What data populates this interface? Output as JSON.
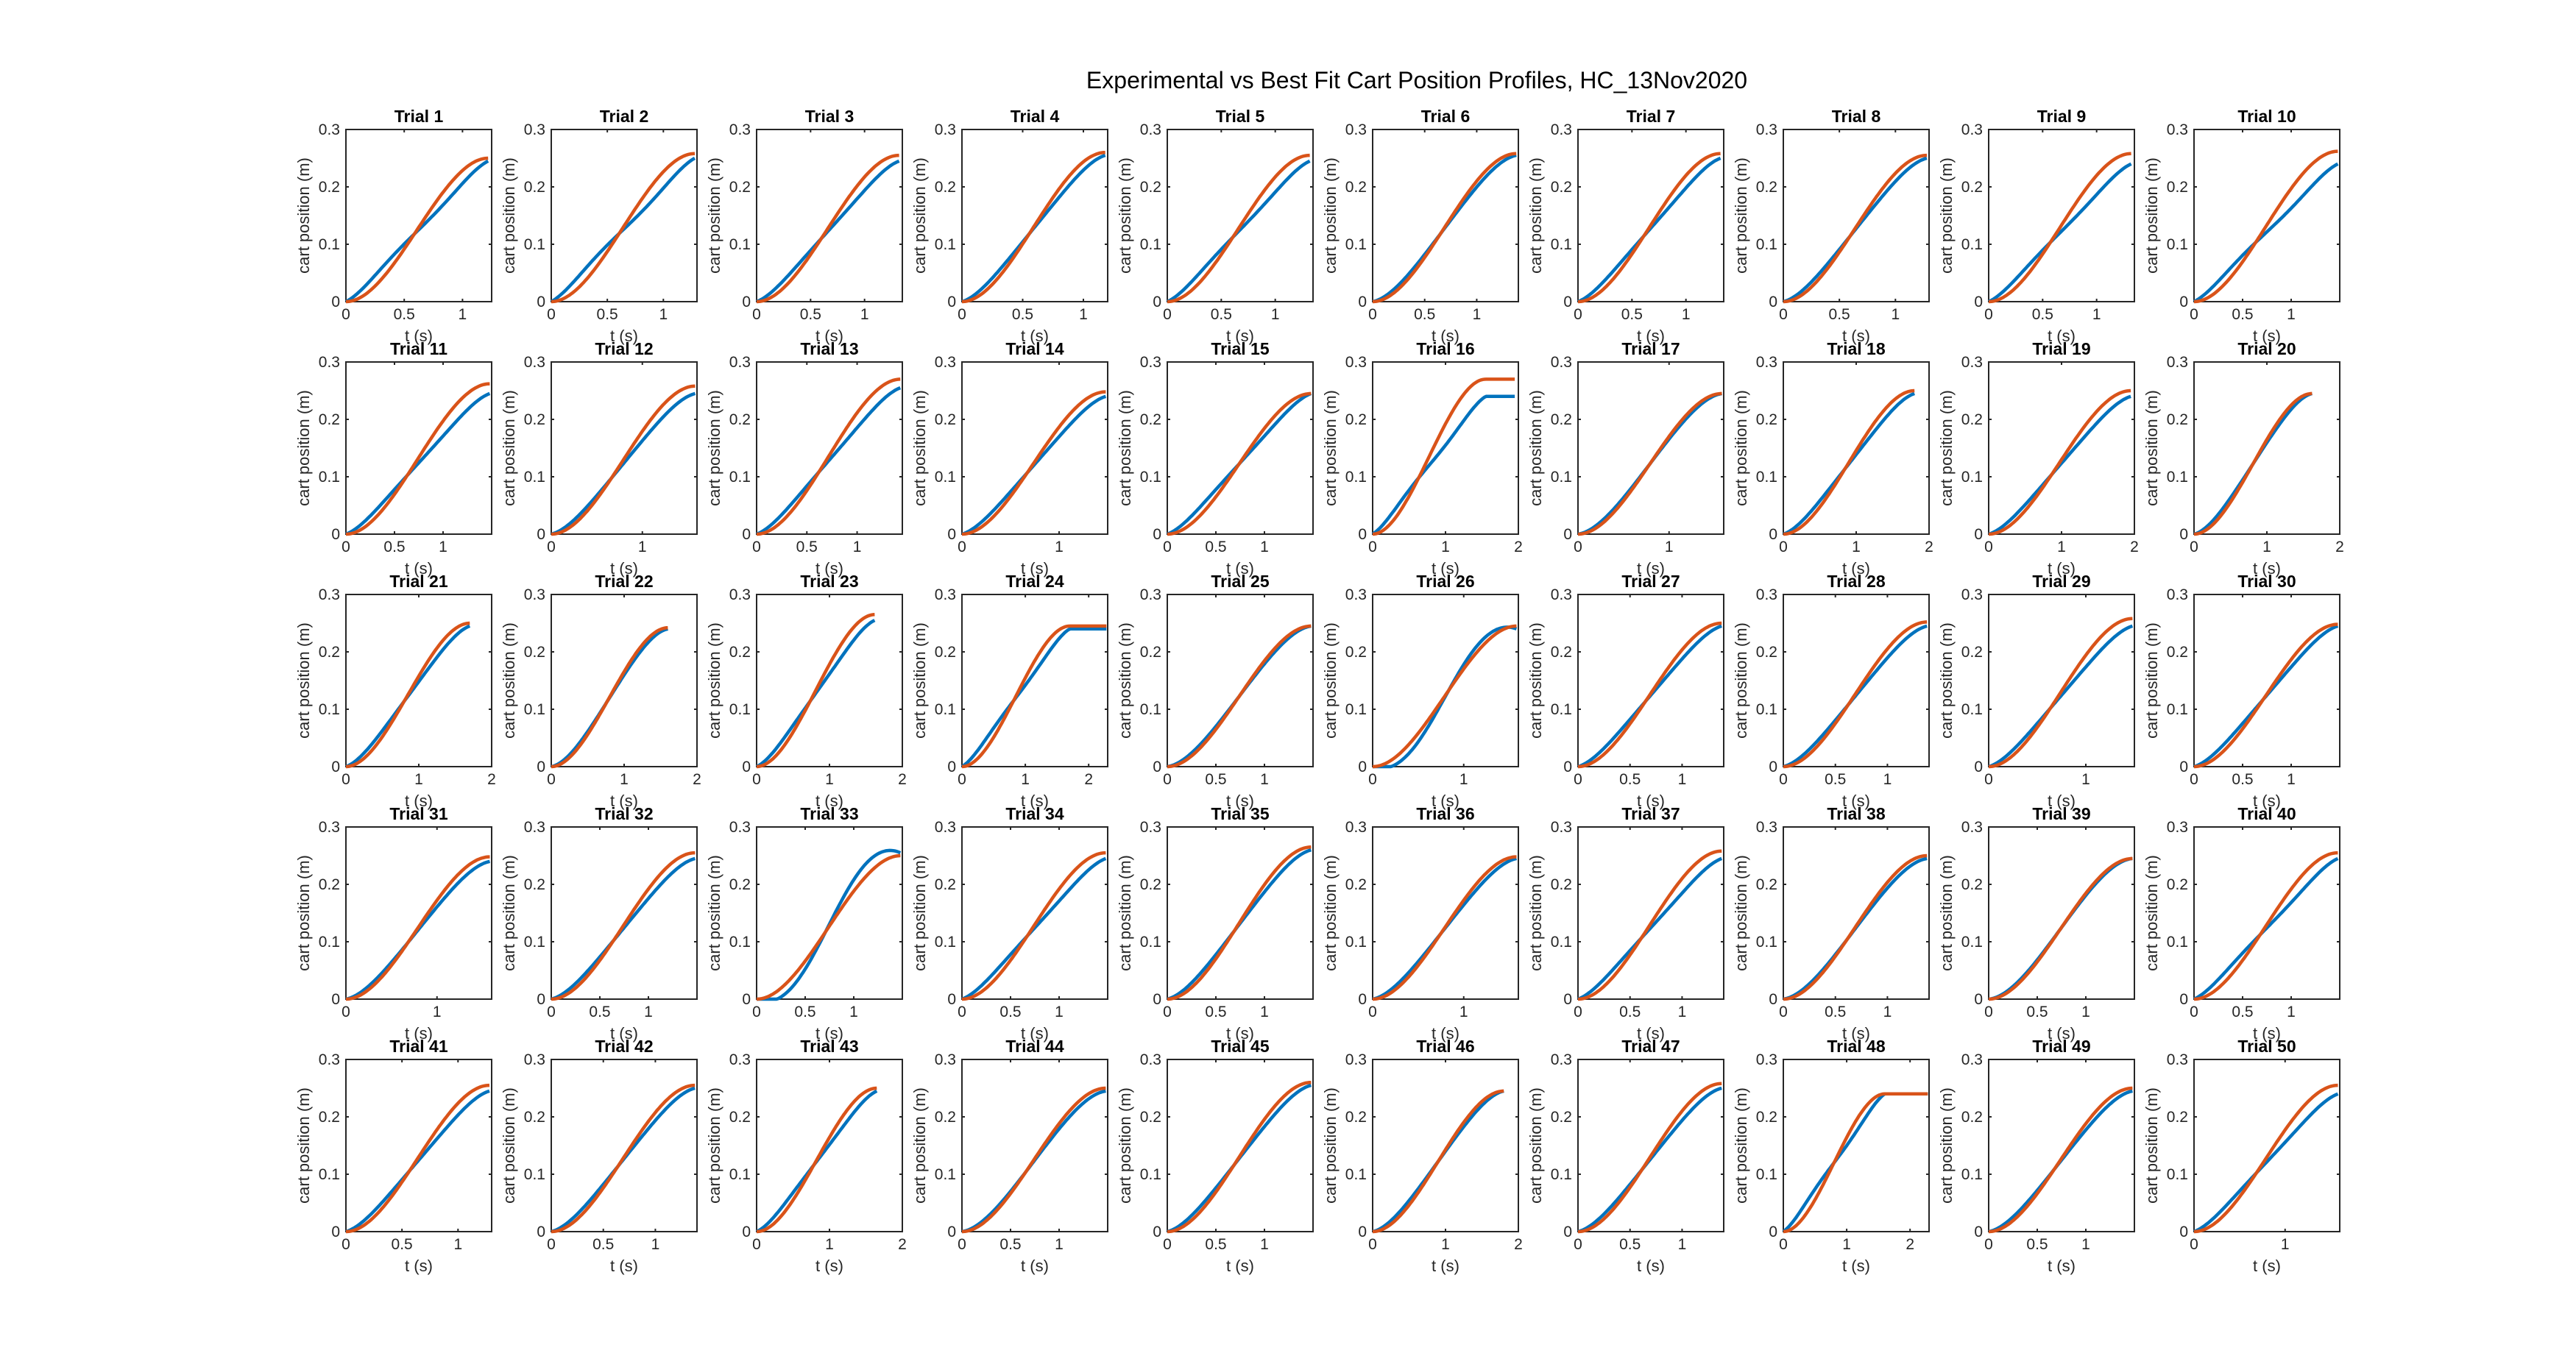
{
  "figure_title": "Experimental vs Best Fit Cart Position Profiles, HC_13Nov2020",
  "chart_data": {
    "type": "line",
    "grid": false,
    "colors": {
      "experimental": "#0072BD",
      "best_fit": "#D95319"
    },
    "xlabel": "t (s)",
    "ylabel": "cart position (m)",
    "ylim": [
      0,
      0.3
    ],
    "yticks": [
      "0",
      "0.1",
      "0.2",
      "0.3"
    ],
    "panels": [
      {
        "title": "Trial 1",
        "xmax": 1.25,
        "tend": 1.22,
        "xticks": [
          {
            "v": 0,
            "l": "0"
          },
          {
            "v": 0.5,
            "l": "0.5"
          },
          {
            "v": 1,
            "l": "1"
          }
        ],
        "yend": 0.245,
        "fend": 0.25,
        "dev": 0.02
      },
      {
        "title": "Trial 2",
        "xmax": 1.3,
        "tend": 1.28,
        "xticks": [
          {
            "v": 0,
            "l": "0"
          },
          {
            "v": 0.5,
            "l": "0.5"
          },
          {
            "v": 1,
            "l": "1"
          }
        ],
        "yend": 0.25,
        "fend": 0.258,
        "dev": 0.022
      },
      {
        "title": "Trial 3",
        "xmax": 1.35,
        "tend": 1.32,
        "xticks": [
          {
            "v": 0,
            "l": "0"
          },
          {
            "v": 0.5,
            "l": "0.5"
          },
          {
            "v": 1,
            "l": "1"
          }
        ],
        "yend": 0.245,
        "fend": 0.255,
        "dev": 0.015
      },
      {
        "title": "Trial 4",
        "xmax": 1.2,
        "tend": 1.18,
        "xticks": [
          {
            "v": 0,
            "l": "0"
          },
          {
            "v": 0.5,
            "l": "0.5"
          },
          {
            "v": 1,
            "l": "1"
          }
        ],
        "yend": 0.255,
        "fend": 0.26,
        "dev": 0.012
      },
      {
        "title": "Trial 5",
        "xmax": 1.35,
        "tend": 1.32,
        "xticks": [
          {
            "v": 0,
            "l": "0"
          },
          {
            "v": 0.5,
            "l": "0.5"
          },
          {
            "v": 1,
            "l": "1"
          }
        ],
        "yend": 0.245,
        "fend": 0.255,
        "dev": 0.018
      },
      {
        "title": "Trial 6",
        "xmax": 1.4,
        "tend": 1.38,
        "xticks": [
          {
            "v": 0,
            "l": "0"
          },
          {
            "v": 0.5,
            "l": "0.5"
          },
          {
            "v": 1,
            "l": "1"
          }
        ],
        "yend": 0.255,
        "fend": 0.258,
        "dev": 0.008
      },
      {
        "title": "Trial 7",
        "xmax": 1.35,
        "tend": 1.32,
        "xticks": [
          {
            "v": 0,
            "l": "0"
          },
          {
            "v": 0.5,
            "l": "0.5"
          },
          {
            "v": 1,
            "l": "1"
          }
        ],
        "yend": 0.25,
        "fend": 0.258,
        "dev": 0.015
      },
      {
        "title": "Trial 8",
        "xmax": 1.3,
        "tend": 1.28,
        "xticks": [
          {
            "v": 0,
            "l": "0"
          },
          {
            "v": 0.5,
            "l": "0.5"
          },
          {
            "v": 1,
            "l": "1"
          }
        ],
        "yend": 0.25,
        "fend": 0.255,
        "dev": 0.01
      },
      {
        "title": "Trial 9",
        "xmax": 1.35,
        "tend": 1.32,
        "xticks": [
          {
            "v": 0,
            "l": "0"
          },
          {
            "v": 0.5,
            "l": "0.5"
          },
          {
            "v": 1,
            "l": "1"
          }
        ],
        "yend": 0.24,
        "fend": 0.258,
        "dev": 0.018
      },
      {
        "title": "Trial 10",
        "xmax": 1.5,
        "tend": 1.48,
        "xticks": [
          {
            "v": 0,
            "l": "0"
          },
          {
            "v": 0.5,
            "l": "0.5"
          },
          {
            "v": 1,
            "l": "1"
          }
        ],
        "yend": 0.24,
        "fend": 0.262,
        "dev": 0.02
      },
      {
        "title": "Trial 11",
        "xmax": 1.5,
        "tend": 1.48,
        "xticks": [
          {
            "v": 0,
            "l": "0"
          },
          {
            "v": 0.5,
            "l": "0.5"
          },
          {
            "v": 1,
            "l": "1"
          }
        ],
        "yend": 0.245,
        "fend": 0.262,
        "dev": 0.015
      },
      {
        "title": "Trial 12",
        "xmax": 1.6,
        "tend": 1.58,
        "xticks": [
          {
            "v": 0,
            "l": "0"
          },
          {
            "v": 1,
            "l": "1"
          }
        ],
        "yend": 0.245,
        "fend": 0.258,
        "dev": 0.01
      },
      {
        "title": "Trial 13",
        "xmax": 1.45,
        "tend": 1.43,
        "xticks": [
          {
            "v": 0,
            "l": "0"
          },
          {
            "v": 0.5,
            "l": "0.5"
          },
          {
            "v": 1,
            "l": "1"
          }
        ],
        "yend": 0.255,
        "fend": 0.27,
        "dev": 0.015
      },
      {
        "title": "Trial 14",
        "xmax": 1.5,
        "tend": 1.48,
        "xticks": [
          {
            "v": 0,
            "l": "0"
          },
          {
            "v": 1,
            "l": "1"
          }
        ],
        "yend": 0.24,
        "fend": 0.248,
        "dev": 0.012
      },
      {
        "title": "Trial 15",
        "xmax": 1.5,
        "tend": 1.48,
        "xticks": [
          {
            "v": 0,
            "l": "0"
          },
          {
            "v": 0.5,
            "l": "0.5"
          },
          {
            "v": 1,
            "l": "1"
          }
        ],
        "yend": 0.245,
        "fend": 0.245,
        "dev": 0.015
      },
      {
        "title": "Trial 16",
        "xmax": 2.0,
        "tend": 1.95,
        "xticks": [
          {
            "v": 0,
            "l": "0"
          },
          {
            "v": 1,
            "l": "1"
          },
          {
            "v": 2,
            "l": "2"
          }
        ],
        "yend": 0.24,
        "fend": 0.27,
        "dev": 0.02,
        "plateau": 1.55
      },
      {
        "title": "Trial 17",
        "xmax": 1.6,
        "tend": 1.58,
        "xticks": [
          {
            "v": 0,
            "l": "0"
          },
          {
            "v": 1,
            "l": "1"
          }
        ],
        "yend": 0.245,
        "fend": 0.245,
        "dev": 0.006
      },
      {
        "title": "Trial 18",
        "xmax": 2.0,
        "tend": 1.8,
        "xticks": [
          {
            "v": 0,
            "l": "0"
          },
          {
            "v": 1,
            "l": "1"
          },
          {
            "v": 2,
            "l": "2"
          }
        ],
        "yend": 0.245,
        "fend": 0.25,
        "dev": 0.012
      },
      {
        "title": "Trial 19",
        "xmax": 2.0,
        "tend": 1.95,
        "xticks": [
          {
            "v": 0,
            "l": "0"
          },
          {
            "v": 1,
            "l": "1"
          },
          {
            "v": 2,
            "l": "2"
          }
        ],
        "yend": 0.24,
        "fend": 0.25,
        "dev": 0.012
      },
      {
        "title": "Trial 20",
        "xmax": 2.0,
        "tend": 1.62,
        "xticks": [
          {
            "v": 0,
            "l": "0"
          },
          {
            "v": 1,
            "l": "1"
          },
          {
            "v": 2,
            "l": "2"
          }
        ],
        "yend": 0.245,
        "fend": 0.245,
        "dev": 0.008
      },
      {
        "title": "Trial 21",
        "xmax": 2.0,
        "tend": 1.7,
        "xticks": [
          {
            "v": 0,
            "l": "0"
          },
          {
            "v": 1,
            "l": "1"
          },
          {
            "v": 2,
            "l": "2"
          }
        ],
        "yend": 0.245,
        "fend": 0.25,
        "dev": 0.012
      },
      {
        "title": "Trial 22",
        "xmax": 2.0,
        "tend": 1.6,
        "xticks": [
          {
            "v": 0,
            "l": "0"
          },
          {
            "v": 1,
            "l": "1"
          },
          {
            "v": 2,
            "l": "2"
          }
        ],
        "yend": 0.24,
        "fend": 0.242,
        "dev": 0.006
      },
      {
        "title": "Trial 23",
        "xmax": 2.0,
        "tend": 1.62,
        "xticks": [
          {
            "v": 0,
            "l": "0"
          },
          {
            "v": 1,
            "l": "1"
          },
          {
            "v": 2,
            "l": "2"
          }
        ],
        "yend": 0.255,
        "fend": 0.265,
        "dev": 0.015
      },
      {
        "title": "Trial 24",
        "xmax": 2.3,
        "tend": 2.28,
        "xticks": [
          {
            "v": 0,
            "l": "0"
          },
          {
            "v": 1,
            "l": "1"
          },
          {
            "v": 2,
            "l": "2"
          }
        ],
        "yend": 0.24,
        "fend": 0.245,
        "dev": 0.018,
        "plateau": 1.7
      },
      {
        "title": "Trial 25",
        "xmax": 1.5,
        "tend": 1.48,
        "xticks": [
          {
            "v": 0,
            "l": "0"
          },
          {
            "v": 0.5,
            "l": "0.5"
          },
          {
            "v": 1,
            "l": "1"
          }
        ],
        "yend": 0.245,
        "fend": 0.245,
        "dev": 0.006
      },
      {
        "title": "Trial 26",
        "xmax": 1.6,
        "tend": 1.58,
        "xticks": [
          {
            "v": 0,
            "l": "0"
          },
          {
            "v": 1,
            "l": "1"
          }
        ],
        "yend": 0.24,
        "fend": 0.245,
        "dev": -0.015
      },
      {
        "title": "Trial 27",
        "xmax": 1.4,
        "tend": 1.38,
        "xticks": [
          {
            "v": 0,
            "l": "0"
          },
          {
            "v": 0.5,
            "l": "0.5"
          },
          {
            "v": 1,
            "l": "1"
          }
        ],
        "yend": 0.245,
        "fend": 0.25,
        "dev": 0.012
      },
      {
        "title": "Trial 28",
        "xmax": 1.4,
        "tend": 1.38,
        "xticks": [
          {
            "v": 0,
            "l": "0"
          },
          {
            "v": 0.5,
            "l": "0.5"
          },
          {
            "v": 1,
            "l": "1"
          }
        ],
        "yend": 0.245,
        "fend": 0.252,
        "dev": 0.01
      },
      {
        "title": "Trial 29",
        "xmax": 1.5,
        "tend": 1.48,
        "xticks": [
          {
            "v": 0,
            "l": "0"
          },
          {
            "v": 1,
            "l": "1"
          }
        ],
        "yend": 0.245,
        "fend": 0.258,
        "dev": 0.012
      },
      {
        "title": "Trial 30",
        "xmax": 1.5,
        "tend": 1.48,
        "xticks": [
          {
            "v": 0,
            "l": "0"
          },
          {
            "v": 0.5,
            "l": "0.5"
          },
          {
            "v": 1,
            "l": "1"
          }
        ],
        "yend": 0.245,
        "fend": 0.248,
        "dev": 0.012
      },
      {
        "title": "Trial 31",
        "xmax": 1.6,
        "tend": 1.58,
        "xticks": [
          {
            "v": 0,
            "l": "0"
          },
          {
            "v": 1,
            "l": "1"
          }
        ],
        "yend": 0.24,
        "fend": 0.248,
        "dev": 0.008
      },
      {
        "title": "Trial 32",
        "xmax": 1.5,
        "tend": 1.48,
        "xticks": [
          {
            "v": 0,
            "l": "0"
          },
          {
            "v": 0.5,
            "l": "0.5"
          },
          {
            "v": 1,
            "l": "1"
          }
        ],
        "yend": 0.245,
        "fend": 0.255,
        "dev": 0.01
      },
      {
        "title": "Trial 33",
        "xmax": 1.5,
        "tend": 1.48,
        "xticks": [
          {
            "v": 0,
            "l": "0"
          },
          {
            "v": 0.5,
            "l": "0.5"
          },
          {
            "v": 1,
            "l": "1"
          }
        ],
        "yend": 0.255,
        "fend": 0.25,
        "dev": -0.018
      },
      {
        "title": "Trial 34",
        "xmax": 1.5,
        "tend": 1.48,
        "xticks": [
          {
            "v": 0,
            "l": "0"
          },
          {
            "v": 0.5,
            "l": "0.5"
          },
          {
            "v": 1,
            "l": "1"
          }
        ],
        "yend": 0.245,
        "fend": 0.255,
        "dev": 0.015
      },
      {
        "title": "Trial 35",
        "xmax": 1.5,
        "tend": 1.48,
        "xticks": [
          {
            "v": 0,
            "l": "0"
          },
          {
            "v": 0.5,
            "l": "0.5"
          },
          {
            "v": 1,
            "l": "1"
          }
        ],
        "yend": 0.26,
        "fend": 0.265,
        "dev": 0.01
      },
      {
        "title": "Trial 36",
        "xmax": 1.6,
        "tend": 1.58,
        "xticks": [
          {
            "v": 0,
            "l": "0"
          },
          {
            "v": 1,
            "l": "1"
          }
        ],
        "yend": 0.245,
        "fend": 0.248,
        "dev": 0.008
      },
      {
        "title": "Trial 37",
        "xmax": 1.4,
        "tend": 1.38,
        "xticks": [
          {
            "v": 0,
            "l": "0"
          },
          {
            "v": 0.5,
            "l": "0.5"
          },
          {
            "v": 1,
            "l": "1"
          }
        ],
        "yend": 0.245,
        "fend": 0.258,
        "dev": 0.015
      },
      {
        "title": "Trial 38",
        "xmax": 1.4,
        "tend": 1.38,
        "xticks": [
          {
            "v": 0,
            "l": "0"
          },
          {
            "v": 0.5,
            "l": "0.5"
          },
          {
            "v": 1,
            "l": "1"
          }
        ],
        "yend": 0.245,
        "fend": 0.25,
        "dev": 0.006
      },
      {
        "title": "Trial 39",
        "xmax": 1.5,
        "tend": 1.48,
        "xticks": [
          {
            "v": 0,
            "l": "0"
          },
          {
            "v": 0.5,
            "l": "0.5"
          },
          {
            "v": 1,
            "l": "1"
          }
        ],
        "yend": 0.245,
        "fend": 0.245,
        "dev": 0.004
      },
      {
        "title": "Trial 40",
        "xmax": 1.5,
        "tend": 1.48,
        "xticks": [
          {
            "v": 0,
            "l": "0"
          },
          {
            "v": 0.5,
            "l": "0.5"
          },
          {
            "v": 1,
            "l": "1"
          }
        ],
        "yend": 0.245,
        "fend": 0.255,
        "dev": 0.018
      },
      {
        "title": "Trial 41",
        "xmax": 1.3,
        "tend": 1.28,
        "xticks": [
          {
            "v": 0,
            "l": "0"
          },
          {
            "v": 0.5,
            "l": "0.5"
          },
          {
            "v": 1,
            "l": "1"
          }
        ],
        "yend": 0.245,
        "fend": 0.255,
        "dev": 0.012
      },
      {
        "title": "Trial 42",
        "xmax": 1.4,
        "tend": 1.38,
        "xticks": [
          {
            "v": 0,
            "l": "0"
          },
          {
            "v": 0.5,
            "l": "0.5"
          },
          {
            "v": 1,
            "l": "1"
          }
        ],
        "yend": 0.25,
        "fend": 0.255,
        "dev": 0.01
      },
      {
        "title": "Trial 43",
        "xmax": 2.0,
        "tend": 1.65,
        "xticks": [
          {
            "v": 0,
            "l": "0"
          },
          {
            "v": 1,
            "l": "1"
          },
          {
            "v": 2,
            "l": "2"
          }
        ],
        "yend": 0.245,
        "fend": 0.25,
        "dev": 0.015
      },
      {
        "title": "Trial 44",
        "xmax": 1.5,
        "tend": 1.48,
        "xticks": [
          {
            "v": 0,
            "l": "0"
          },
          {
            "v": 0.5,
            "l": "0.5"
          },
          {
            "v": 1,
            "l": "1"
          }
        ],
        "yend": 0.245,
        "fend": 0.25,
        "dev": 0.006
      },
      {
        "title": "Trial 45",
        "xmax": 1.5,
        "tend": 1.48,
        "xticks": [
          {
            "v": 0,
            "l": "0"
          },
          {
            "v": 0.5,
            "l": "0.5"
          },
          {
            "v": 1,
            "l": "1"
          }
        ],
        "yend": 0.255,
        "fend": 0.26,
        "dev": 0.01
      },
      {
        "title": "Trial 46",
        "xmax": 2.0,
        "tend": 1.8,
        "xticks": [
          {
            "v": 0,
            "l": "0"
          },
          {
            "v": 1,
            "l": "1"
          },
          {
            "v": 2,
            "l": "2"
          }
        ],
        "yend": 0.245,
        "fend": 0.245,
        "dev": 0.008
      },
      {
        "title": "Trial 47",
        "xmax": 1.4,
        "tend": 1.38,
        "xticks": [
          {
            "v": 0,
            "l": "0"
          },
          {
            "v": 0.5,
            "l": "0.5"
          },
          {
            "v": 1,
            "l": "1"
          }
        ],
        "yend": 0.25,
        "fend": 0.258,
        "dev": 0.01
      },
      {
        "title": "Trial 48",
        "xmax": 2.3,
        "tend": 2.28,
        "xticks": [
          {
            "v": 0,
            "l": "0"
          },
          {
            "v": 1,
            "l": "1"
          },
          {
            "v": 2,
            "l": "2"
          }
        ],
        "yend": 0.24,
        "fend": 0.24,
        "dev": 0.02,
        "plateau": 1.6
      },
      {
        "title": "Trial 49",
        "xmax": 1.5,
        "tend": 1.48,
        "xticks": [
          {
            "v": 0,
            "l": "0"
          },
          {
            "v": 0.5,
            "l": "0.5"
          },
          {
            "v": 1,
            "l": "1"
          }
        ],
        "yend": 0.245,
        "fend": 0.25,
        "dev": 0.008
      },
      {
        "title": "Trial 50",
        "xmax": 1.6,
        "tend": 1.58,
        "xticks": [
          {
            "v": 0,
            "l": "0"
          },
          {
            "v": 1,
            "l": "1"
          }
        ],
        "yend": 0.24,
        "fend": 0.255,
        "dev": 0.015
      }
    ]
  }
}
